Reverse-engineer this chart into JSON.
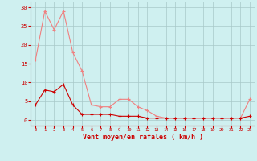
{
  "x": [
    0,
    1,
    2,
    3,
    4,
    5,
    6,
    7,
    8,
    9,
    10,
    11,
    12,
    13,
    14,
    15,
    16,
    17,
    18,
    19,
    20,
    21,
    22,
    23
  ],
  "y_light": [
    16,
    29,
    24,
    29,
    18,
    13,
    4,
    3.5,
    3.5,
    5.5,
    5.5,
    3.5,
    2.5,
    1,
    0.5,
    0.5,
    0.5,
    0.5,
    0.5,
    0.5,
    0.5,
    0.5,
    0.5,
    5.5
  ],
  "y_dark": [
    4,
    8,
    7.5,
    9.5,
    4,
    1.5,
    1.5,
    1.5,
    1.5,
    1,
    1,
    1,
    0.5,
    0.5,
    0.5,
    0.5,
    0.5,
    0.5,
    0.5,
    0.5,
    0.5,
    0.5,
    0.5,
    1
  ],
  "line_color_light": "#f08080",
  "line_color_dark": "#cc0000",
  "bg_color": "#cff0f0",
  "grid_color": "#a8c8c8",
  "xlabel": "Vent moyen/en rafales ( km/h )",
  "yticks": [
    0,
    5,
    10,
    15,
    20,
    25,
    30
  ],
  "ytick_labels": [
    "0",
    "5",
    "10",
    "15",
    "20",
    "25",
    "30"
  ],
  "xlim": [
    -0.5,
    23.5
  ],
  "ylim": [
    -1.5,
    31.5
  ],
  "tick_color": "#cc0000",
  "label_color": "#cc0000",
  "spine_left_color": "#888888",
  "spine_bottom_color": "#cc0000"
}
